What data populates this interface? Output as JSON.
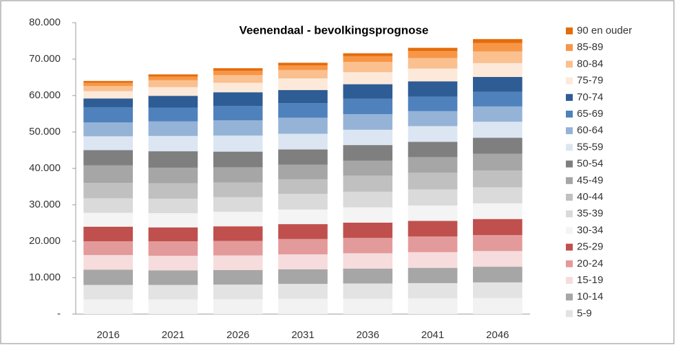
{
  "chart_data": {
    "type": "stacked-bar",
    "title": "Veenendaal - bevolkingsprognose",
    "categories": [
      "2016",
      "2021",
      "2026",
      "2031",
      "2036",
      "2041",
      "2046"
    ],
    "ylim": [
      0,
      80000
    ],
    "yticks": [
      {
        "value": 0,
        "label": "-"
      },
      {
        "value": 10000,
        "label": "10.000"
      },
      {
        "value": 20000,
        "label": "20.000"
      },
      {
        "value": 30000,
        "label": "30.000"
      },
      {
        "value": 40000,
        "label": "40.000"
      },
      {
        "value": 50000,
        "label": "50.000"
      },
      {
        "value": 60000,
        "label": "60.000"
      },
      {
        "value": 70000,
        "label": "70.000"
      },
      {
        "value": 80000,
        "label": "80.000"
      }
    ],
    "series": [
      {
        "name": null,
        "color": "#f2f2f2",
        "values": [
          4000,
          4000,
          4100,
          4200,
          4200,
          4300,
          4400
        ]
      },
      {
        "name": "5-9",
        "color": "#e3e3e3",
        "values": [
          4000,
          4000,
          4000,
          4100,
          4200,
          4200,
          4300
        ]
      },
      {
        "name": "10-14",
        "color": "#a6a6a6",
        "values": [
          4200,
          4000,
          4000,
          4000,
          4100,
          4200,
          4300
        ]
      },
      {
        "name": "15-19",
        "color": "#f6dcdc",
        "values": [
          4000,
          4000,
          4000,
          4100,
          4200,
          4300,
          4300
        ]
      },
      {
        "name": "20-24",
        "color": "#e39a9a",
        "values": [
          3800,
          4000,
          4000,
          4200,
          4200,
          4300,
          4400
        ]
      },
      {
        "name": "25-29",
        "color": "#c0504d",
        "values": [
          4000,
          3800,
          4000,
          4100,
          4200,
          4300,
          4400
        ]
      },
      {
        "name": "30-34",
        "color": "#f4f4f4",
        "values": [
          3800,
          3900,
          4000,
          4000,
          4200,
          4200,
          4300
        ]
      },
      {
        "name": "35-39",
        "color": "#dadada",
        "values": [
          4000,
          4000,
          4000,
          4300,
          4300,
          4400,
          4400
        ]
      },
      {
        "name": "40-44",
        "color": "#c0c0c0",
        "values": [
          4200,
          4200,
          4000,
          4000,
          4400,
          4600,
          4600
        ]
      },
      {
        "name": "45-49",
        "color": "#a6a6a6",
        "values": [
          4800,
          4300,
          4200,
          4000,
          4100,
          4300,
          4600
        ]
      },
      {
        "name": "50-54",
        "color": "#7f7f7f",
        "values": [
          4200,
          4500,
          4300,
          4200,
          4300,
          4200,
          4400
        ]
      },
      {
        "name": "55-59",
        "color": "#dce6f2",
        "values": [
          3800,
          4200,
          4400,
          4300,
          4200,
          4300,
          4400
        ]
      },
      {
        "name": "60-64",
        "color": "#95b3d7",
        "values": [
          3800,
          4000,
          4200,
          4400,
          4300,
          4100,
          4200
        ]
      },
      {
        "name": "65-69",
        "color": "#4f81bd",
        "values": [
          4200,
          3800,
          3900,
          4000,
          4200,
          4000,
          4000
        ]
      },
      {
        "name": "70-74",
        "color": "#2e5c94",
        "values": [
          2400,
          3200,
          3800,
          3600,
          4000,
          4200,
          4100
        ]
      },
      {
        "name": "75-79",
        "color": "#fde9d9",
        "values": [
          2000,
          2400,
          2600,
          3200,
          3300,
          3500,
          3800
        ]
      },
      {
        "name": "80-84",
        "color": "#fac090",
        "values": [
          1400,
          1900,
          2100,
          2300,
          2800,
          2900,
          3200
        ]
      },
      {
        "name": "85-89",
        "color": "#f79646",
        "values": [
          900,
          1000,
          1200,
          1300,
          1600,
          1900,
          2300
        ]
      },
      {
        "name": "90 en ouder",
        "color": "#e46c0a",
        "values": [
          500,
          600,
          700,
          700,
          800,
          900,
          1100
        ]
      }
    ]
  }
}
